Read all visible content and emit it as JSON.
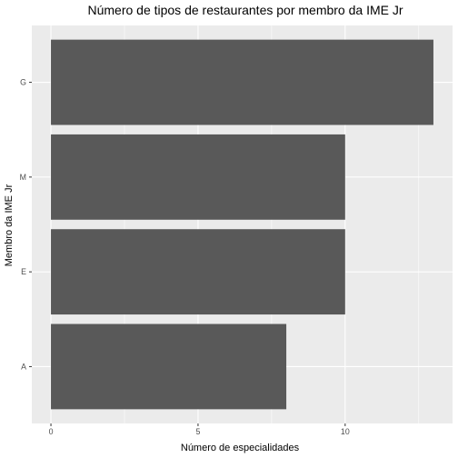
{
  "chart_data": {
    "type": "bar",
    "orientation": "horizontal",
    "title": "Número de tipos de restaurantes por membro da IME Jr",
    "xlabel": "Número de especialidades",
    "ylabel": "Membro da IME Jr",
    "categories": [
      "A",
      "E",
      "M",
      "G"
    ],
    "values": [
      8,
      10,
      10,
      13
    ],
    "xlim": [
      -0.65,
      13.65
    ],
    "xticks": [
      0,
      5,
      10
    ],
    "grid": true,
    "bar_color": "#595959",
    "panel_color": "#EBEBEB",
    "grid_color": "#FFFFFF"
  }
}
